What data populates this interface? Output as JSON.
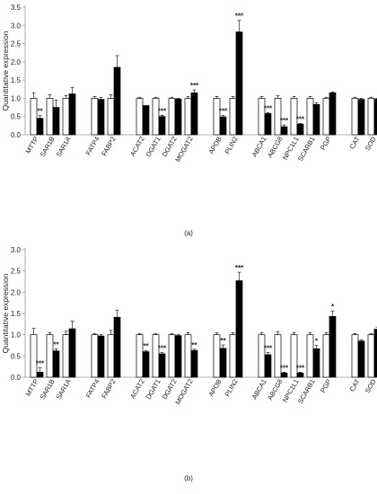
{
  "chart_data": [
    {
      "panel_label": "(a)",
      "type": "bar",
      "ylabel": "Quantitative expression",
      "ylim": [
        0,
        3.5
      ],
      "yticks": [
        "0.0",
        "0.5",
        "1.0",
        "1.5",
        "2.0",
        "2.5",
        "3.0",
        "3.5"
      ],
      "colors": {
        "series_0": "#ffffff",
        "series_1": "#000000"
      },
      "groups": [
        {
          "items": [
            {
              "label": "MTTP",
              "values": [
                1.0,
                0.45
              ],
              "errors": [
                0.15,
                0.08
              ],
              "sig": "**"
            },
            {
              "label": "SAR1B",
              "values": [
                1.0,
                0.75
              ],
              "errors": [
                0.1,
                0.2
              ],
              "sig": ""
            },
            {
              "label": "SAR1A",
              "values": [
                1.0,
                1.12
              ],
              "errors": [
                0.08,
                0.18
              ],
              "sig": ""
            }
          ]
        },
        {
          "items": [
            {
              "label": "FATP4",
              "values": [
                1.0,
                0.97
              ],
              "errors": [
                0.05,
                0.05
              ],
              "sig": ""
            },
            {
              "label": "FABP2",
              "values": [
                1.0,
                1.85
              ],
              "errors": [
                0.1,
                0.32
              ],
              "sig": ""
            }
          ]
        },
        {
          "items": [
            {
              "label": "ACAT2",
              "values": [
                1.0,
                0.8
              ],
              "errors": [
                0.03,
                0.0
              ],
              "sig": ""
            },
            {
              "label": "DGAT1",
              "values": [
                1.0,
                0.5
              ],
              "errors": [
                0.03,
                0.03
              ],
              "sig": "***"
            },
            {
              "label": "DGAT2",
              "values": [
                1.0,
                0.98
              ],
              "errors": [
                0.03,
                0.02
              ],
              "sig": ""
            },
            {
              "label": "MOGAT2",
              "values": [
                1.0,
                1.15
              ],
              "errors": [
                0.05,
                0.08
              ],
              "sig": "***"
            }
          ]
        },
        {
          "items": [
            {
              "label": "APOB",
              "values": [
                1.0,
                0.49
              ],
              "errors": [
                0.05,
                0.04
              ],
              "sig": "***"
            },
            {
              "label": "PLIN2",
              "values": [
                1.0,
                2.82
              ],
              "errors": [
                0.05,
                0.32
              ],
              "sig": "***"
            }
          ]
        },
        {
          "items": [
            {
              "label": "ABCA1",
              "values": [
                1.0,
                0.58
              ],
              "errors": [
                0.05,
                0.03
              ],
              "sig": "***"
            },
            {
              "label": "ABCG8",
              "values": [
                1.0,
                0.22
              ],
              "errors": [
                0.07,
                0.05
              ],
              "sig": "***"
            },
            {
              "label": "NPC1L1",
              "values": [
                1.0,
                0.29
              ],
              "errors": [
                0.05,
                0.02
              ],
              "sig": "***"
            },
            {
              "label": "SCARB1",
              "values": [
                1.0,
                0.83
              ],
              "errors": [
                0.05,
                0.05
              ],
              "sig": ""
            },
            {
              "label": "PGP",
              "values": [
                1.0,
                1.15
              ],
              "errors": [
                0.03,
                0.02
              ],
              "sig": ""
            }
          ]
        },
        {
          "items": [
            {
              "label": "CAT",
              "values": [
                1.0,
                0.97
              ],
              "errors": [
                0.03,
                0.03
              ],
              "sig": ""
            },
            {
              "label": "SOD",
              "values": [
                1.0,
                0.98
              ],
              "errors": [
                0.03,
                0.02
              ],
              "sig": ""
            }
          ]
        }
      ]
    },
    {
      "panel_label": "(b)",
      "type": "bar",
      "ylabel": "Quantitative expression",
      "ylim": [
        0,
        3.0
      ],
      "yticks": [
        "0.0",
        "0.5",
        "1.0",
        "1.5",
        "2.0",
        "2.5",
        "3.0"
      ],
      "colors": {
        "series_0": "#ffffff",
        "series_1": "#000000"
      },
      "groups": [
        {
          "items": [
            {
              "label": "MTTP",
              "values": [
                1.0,
                0.12
              ],
              "errors": [
                0.15,
                0.1
              ],
              "sig": "***"
            },
            {
              "label": "SAR1B",
              "values": [
                1.0,
                0.62
              ],
              "errors": [
                0.05,
                0.05
              ],
              "sig": "**"
            },
            {
              "label": "SAR1A",
              "values": [
                1.0,
                1.14
              ],
              "errors": [
                0.08,
                0.18
              ],
              "sig": ""
            }
          ]
        },
        {
          "items": [
            {
              "label": "FATP4",
              "values": [
                1.0,
                0.97
              ],
              "errors": [
                0.03,
                0.03
              ],
              "sig": ""
            },
            {
              "label": "FABP2",
              "values": [
                1.0,
                1.41
              ],
              "errors": [
                0.1,
                0.17
              ],
              "sig": ""
            }
          ]
        },
        {
          "items": [
            {
              "label": "ACAT2",
              "values": [
                1.0,
                0.6
              ],
              "errors": [
                0.03,
                0.03
              ],
              "sig": "**"
            },
            {
              "label": "DGAT1",
              "values": [
                1.0,
                0.55
              ],
              "errors": [
                0.03,
                0.03
              ],
              "sig": "***"
            },
            {
              "label": "DGAT2",
              "values": [
                1.0,
                0.98
              ],
              "errors": [
                0.03,
                0.02
              ],
              "sig": ""
            },
            {
              "label": "MOGAT2",
              "values": [
                1.0,
                0.63
              ],
              "errors": [
                0.05,
                0.03
              ],
              "sig": "**"
            }
          ]
        },
        {
          "items": [
            {
              "label": "APOB",
              "values": [
                1.0,
                0.68
              ],
              "errors": [
                0.05,
                0.08
              ],
              "sig": "**"
            },
            {
              "label": "PLIN2",
              "values": [
                1.0,
                2.27
              ],
              "errors": [
                0.05,
                0.2
              ],
              "sig": "***"
            }
          ]
        },
        {
          "items": [
            {
              "label": "ABCA1",
              "values": [
                1.0,
                0.53
              ],
              "errors": [
                0.05,
                0.05
              ],
              "sig": "***"
            },
            {
              "label": "ABCG8",
              "values": [
                1.0,
                0.1
              ],
              "errors": [
                0.07,
                0.02
              ],
              "sig": "***"
            },
            {
              "label": "NPC1L1",
              "values": [
                1.0,
                0.1
              ],
              "errors": [
                0.05,
                0.02
              ],
              "sig": "***"
            },
            {
              "label": "SCARB1",
              "values": [
                1.0,
                0.67
              ],
              "errors": [
                0.05,
                0.08
              ],
              "sig": "*"
            },
            {
              "label": "PGP",
              "values": [
                1.0,
                1.43
              ],
              "errors": [
                0.05,
                0.13
              ],
              "sig": "*"
            }
          ]
        },
        {
          "items": [
            {
              "label": "CAT",
              "values": [
                1.0,
                0.85
              ],
              "errors": [
                0.03,
                0.03
              ],
              "sig": ""
            },
            {
              "label": "SOD",
              "values": [
                1.0,
                1.13
              ],
              "errors": [
                0.03,
                0.05
              ],
              "sig": ""
            }
          ]
        }
      ]
    }
  ]
}
